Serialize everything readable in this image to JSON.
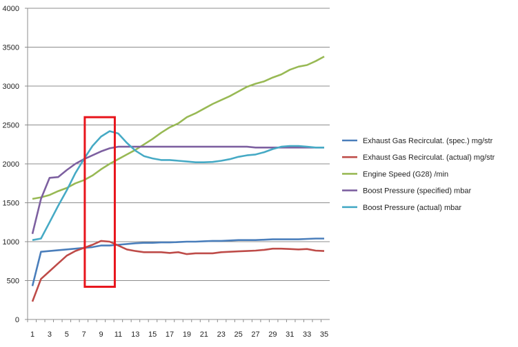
{
  "chart_data": {
    "type": "line",
    "title": "",
    "xlabel": "",
    "ylabel": "",
    "x": [
      1,
      2,
      3,
      4,
      5,
      6,
      7,
      8,
      9,
      10,
      11,
      12,
      13,
      14,
      15,
      16,
      17,
      18,
      19,
      20,
      21,
      22,
      23,
      24,
      25,
      26,
      27,
      28,
      29,
      30,
      31,
      32,
      33,
      34,
      35
    ],
    "x_tick_labels": [
      "1",
      "3",
      "5",
      "7",
      "9",
      "11",
      "13",
      "15",
      "17",
      "19",
      "21",
      "23",
      "25",
      "27",
      "29",
      "31",
      "33",
      "35"
    ],
    "ylim": [
      0,
      4000
    ],
    "y_ticks": [
      0,
      500,
      1000,
      1500,
      2000,
      2500,
      3000,
      3500,
      4000
    ],
    "grid": "horizontal",
    "legend_position": "right",
    "highlight_box": {
      "x_range": [
        7.1,
        10.6
      ],
      "y_range": [
        420,
        2600
      ],
      "color": "#e8141b"
    },
    "series": [
      {
        "name": "Exhaust Gas Recirculat. (spec.)  mg/str",
        "color": "#4a7ebb",
        "values": [
          430,
          870,
          880,
          890,
          900,
          910,
          920,
          930,
          950,
          950,
          960,
          970,
          980,
          985,
          985,
          990,
          990,
          995,
          1000,
          1000,
          1005,
          1010,
          1010,
          1015,
          1020,
          1020,
          1020,
          1025,
          1030,
          1030,
          1030,
          1030,
          1035,
          1040,
          1040
        ]
      },
      {
        "name": "Exhaust Gas Recirculat. (actual)  mg/str",
        "color": "#be4b48",
        "values": [
          230,
          520,
          620,
          720,
          820,
          880,
          920,
          960,
          1010,
          1000,
          950,
          900,
          880,
          865,
          865,
          865,
          855,
          865,
          840,
          850,
          850,
          850,
          865,
          870,
          875,
          880,
          885,
          895,
          910,
          910,
          905,
          900,
          905,
          885,
          880
        ]
      },
      {
        "name": "Engine Speed (G28)  /min",
        "color": "#98b954",
        "values": [
          1550,
          1570,
          1600,
          1650,
          1690,
          1750,
          1790,
          1850,
          1930,
          2000,
          2060,
          2120,
          2180,
          2250,
          2320,
          2400,
          2470,
          2520,
          2600,
          2650,
          2710,
          2770,
          2820,
          2870,
          2930,
          2990,
          3030,
          3060,
          3110,
          3150,
          3210,
          3250,
          3270,
          3320,
          3380
        ]
      },
      {
        "name": "Boost Pressure (specified)  mbar",
        "color": "#7d60a0",
        "values": [
          1100,
          1550,
          1820,
          1830,
          1920,
          2000,
          2060,
          2110,
          2160,
          2200,
          2220,
          2220,
          2220,
          2220,
          2220,
          2220,
          2220,
          2220,
          2220,
          2220,
          2220,
          2220,
          2220,
          2220,
          2220,
          2220,
          2210,
          2210,
          2210,
          2210,
          2210,
          2210,
          2210,
          2210,
          2210
        ]
      },
      {
        "name": "Boost Pressure (actual)  mbar",
        "color": "#46aac5",
        "values": [
          1020,
          1040,
          1250,
          1460,
          1660,
          1880,
          2060,
          2230,
          2350,
          2420,
          2390,
          2270,
          2170,
          2100,
          2070,
          2050,
          2050,
          2040,
          2030,
          2020,
          2020,
          2025,
          2040,
          2060,
          2090,
          2110,
          2120,
          2150,
          2190,
          2220,
          2230,
          2230,
          2220,
          2210,
          2210
        ]
      }
    ]
  }
}
